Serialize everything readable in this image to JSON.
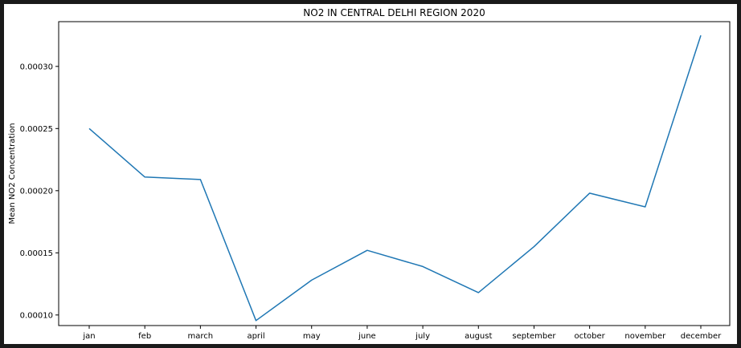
{
  "chart_data": {
    "type": "line",
    "title": "NO2 IN CENTRAL DELHI REGION 2020",
    "xlabel": "",
    "ylabel": "Mean NO2 Concentration",
    "categories": [
      "jan",
      "feb",
      "march",
      "april",
      "may",
      "june",
      "july",
      "august",
      "september",
      "october",
      "november",
      "december"
    ],
    "series": [
      {
        "values": [
          0.00025,
          0.000211,
          0.000209,
          9.55e-05,
          0.000128,
          0.000152,
          0.000139,
          0.000118,
          0.000155,
          0.000198,
          0.000187,
          0.000325
        ],
        "color": "#1f77b4"
      }
    ],
    "yticks": [
      "0.00010",
      "0.00015",
      "0.00020",
      "0.00025",
      "0.00030"
    ],
    "ylim": [
      9.15e-05,
      0.000336
    ],
    "grid": false,
    "legend": "none"
  }
}
